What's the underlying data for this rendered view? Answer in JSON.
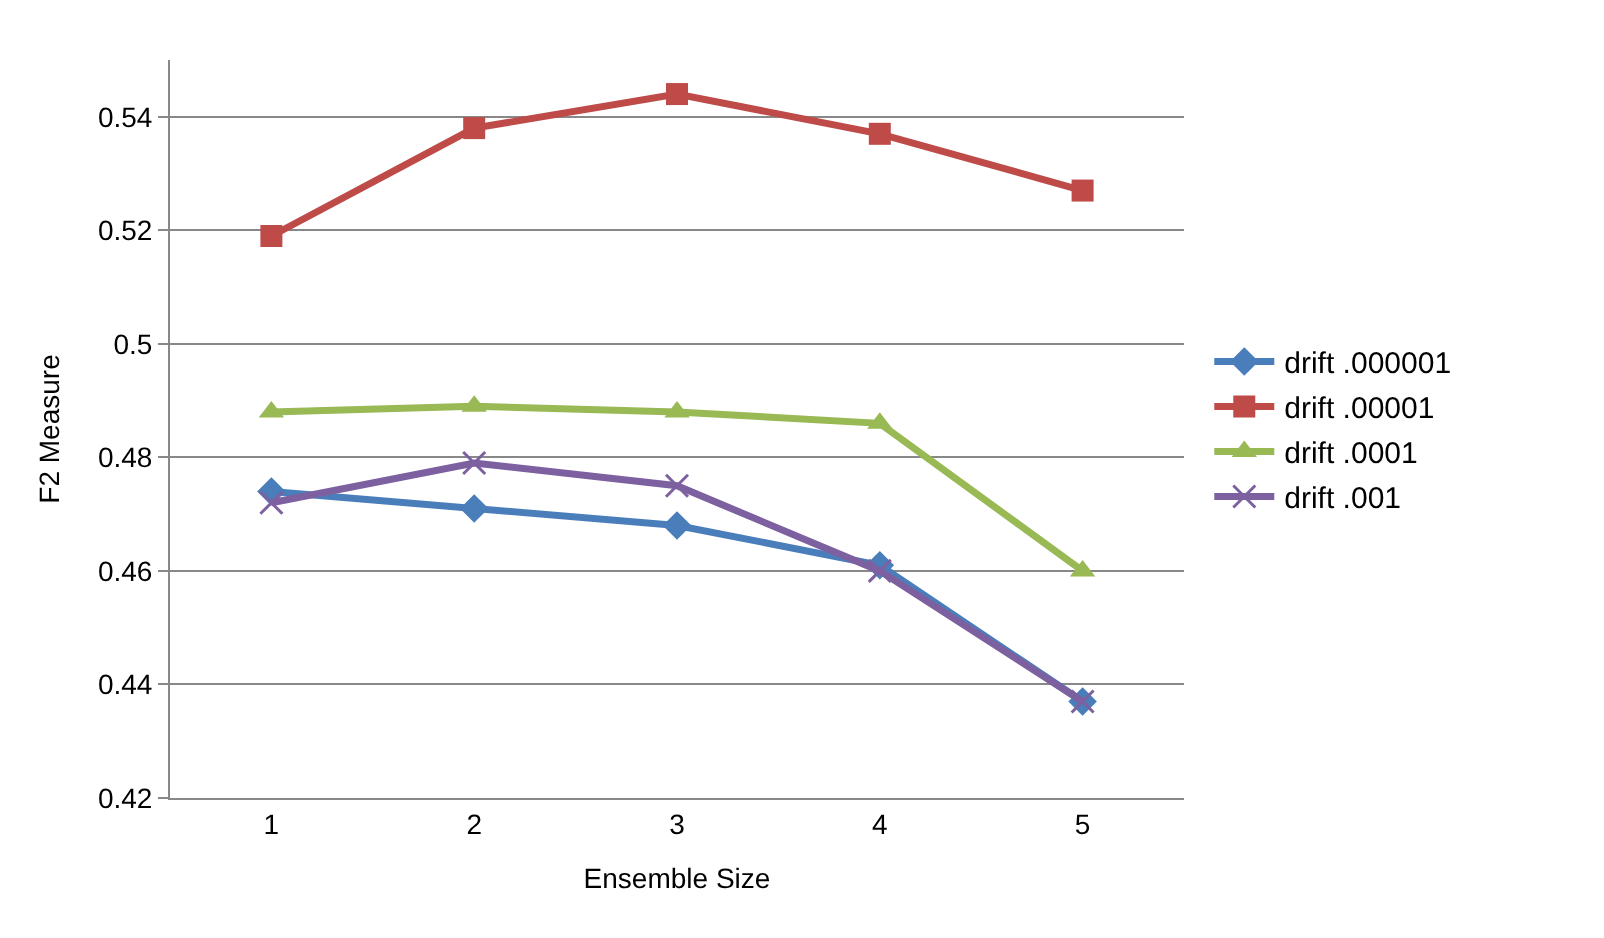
{
  "chart_data": {
    "type": "line",
    "xlabel": "Ensemble Size",
    "ylabel": "F2 Measure",
    "categories": [
      "1",
      "2",
      "3",
      "4",
      "5"
    ],
    "series": [
      {
        "name": "drift .000001",
        "color": "#4a7ebb",
        "marker": "diamond",
        "values": [
          0.474,
          0.471,
          0.468,
          0.461,
          0.437
        ]
      },
      {
        "name": "drift .00001",
        "color": "#be4b48",
        "marker": "square",
        "values": [
          0.519,
          0.538,
          0.544,
          0.537,
          0.527
        ]
      },
      {
        "name": "drift .0001",
        "color": "#98b954",
        "marker": "triangle",
        "values": [
          0.488,
          0.489,
          0.488,
          0.486,
          0.46
        ]
      },
      {
        "name": "drift .001",
        "color": "#7d60a0",
        "marker": "cross",
        "values": [
          0.472,
          0.479,
          0.475,
          0.46,
          0.437
        ]
      }
    ],
    "ylim": [
      0.42,
      0.55
    ],
    "yticks": [
      0.42,
      0.44,
      0.46,
      0.48,
      0.5,
      0.52,
      0.54
    ],
    "grid": "y",
    "legend": "right",
    "line_style": "solid"
  }
}
